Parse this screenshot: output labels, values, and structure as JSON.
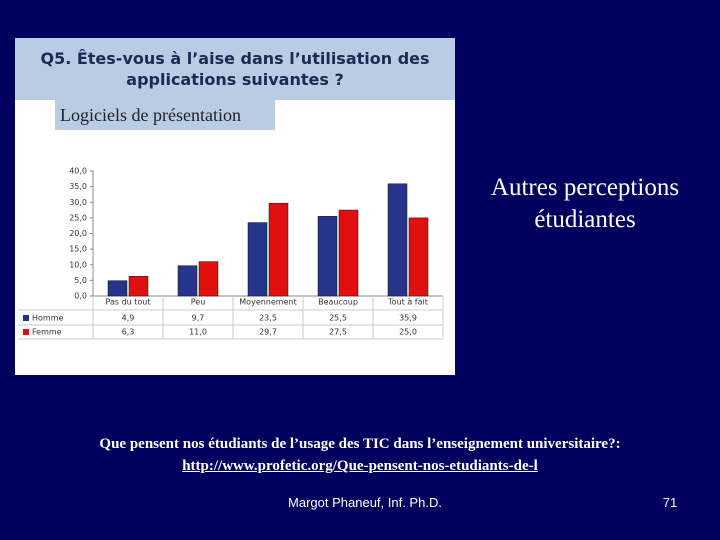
{
  "heading": "Autres perceptions étudiantes",
  "caption": "Que pensent nos étudiants de l’usage des TIC dans l’enseignement universitaire?:",
  "link": "http://www.profetic.org/Que-pensent-nos-etudiants-de-l",
  "footer": "Margot Phaneuf, Inf. Ph.D.",
  "page_number": "71",
  "chart_data": {
    "type": "bar",
    "title": "Q5. Êtes-vous à l’aise dans l’utilisation des applications suivantes ?",
    "subtitle": "Logiciels de présentation",
    "categories": [
      "Pas du tout",
      "Peu",
      "Moyennement",
      "Beaucoup",
      "Tout à fait"
    ],
    "series": [
      {
        "name": "Homme",
        "color": "#27348b",
        "values": [
          4.9,
          9.7,
          23.5,
          25.5,
          35.9
        ],
        "value_labels": [
          "4,9",
          "9,7",
          "23,5",
          "25,5",
          "35,9"
        ]
      },
      {
        "name": "Femme",
        "color": "#e01010",
        "values": [
          6.3,
          11.0,
          29.7,
          27.5,
          25.0
        ],
        "value_labels": [
          "6,3",
          "11,0",
          "29,7",
          "27,5",
          "25,0"
        ]
      }
    ],
    "ylim": [
      0,
      40
    ],
    "yticks": [
      {
        "value": 0,
        "label": "0,0"
      },
      {
        "value": 5,
        "label": "5,0"
      },
      {
        "value": 10,
        "label": "10,0"
      },
      {
        "value": 15,
        "label": "15,0"
      },
      {
        "value": 20,
        "label": "20,0"
      },
      {
        "value": 25,
        "label": "25,0"
      },
      {
        "value": 30,
        "label": "30,0"
      },
      {
        "value": 35,
        "label": "35,0"
      },
      {
        "value": 40,
        "label": "40,0"
      }
    ]
  }
}
